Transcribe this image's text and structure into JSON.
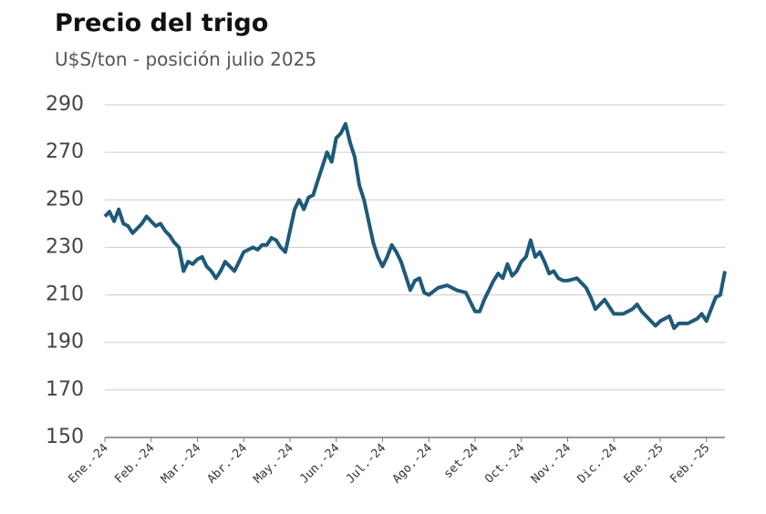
{
  "chart_data": {
    "type": "line",
    "title": "Precio del trigo",
    "subtitle": "U$S/ton - posición julio 2025",
    "xlim": [
      0,
      13.4
    ],
    "xticks": [
      {
        "value": 0,
        "label": "Ene.-24"
      },
      {
        "value": 1,
        "label": "Feb.-24"
      },
      {
        "value": 2,
        "label": "Mar.-24"
      },
      {
        "value": 3,
        "label": "Abr.-24"
      },
      {
        "value": 4,
        "label": "May.-24"
      },
      {
        "value": 5,
        "label": "Jun.-24"
      },
      {
        "value": 6,
        "label": "Jul.-24"
      },
      {
        "value": 7,
        "label": "Ago.-24"
      },
      {
        "value": 8,
        "label": "set-24"
      },
      {
        "value": 9,
        "label": "Oct.-24"
      },
      {
        "value": 10,
        "label": "Nov.-24"
      },
      {
        "value": 11,
        "label": "Dic.-24"
      },
      {
        "value": 12,
        "label": "Ene.-25"
      },
      {
        "value": 13,
        "label": "Feb.-25"
      }
    ],
    "ylim": [
      150,
      290
    ],
    "yticks": [
      150,
      170,
      190,
      210,
      230,
      250,
      270,
      290
    ],
    "grid": true,
    "series": [
      {
        "color": "#1e5a78",
        "x": [
          0.0,
          0.1,
          0.2,
          0.3,
          0.4,
          0.5,
          0.6,
          0.7,
          0.8,
          0.9,
          1.0,
          1.1,
          1.2,
          1.3,
          1.4,
          1.5,
          1.6,
          1.7,
          1.8,
          1.9,
          2.0,
          2.1,
          2.2,
          2.3,
          2.4,
          2.5,
          2.6,
          2.7,
          2.8,
          2.9,
          3.0,
          3.1,
          3.2,
          3.3,
          3.4,
          3.5,
          3.6,
          3.7,
          3.8,
          3.9,
          4.0,
          4.1,
          4.2,
          4.3,
          4.4,
          4.5,
          4.6,
          4.7,
          4.8,
          4.9,
          5.0,
          5.1,
          5.2,
          5.3,
          5.4,
          5.5,
          5.6,
          5.7,
          5.8,
          5.9,
          6.0,
          6.1,
          6.2,
          6.3,
          6.4,
          6.5,
          6.6,
          6.7,
          6.8,
          6.9,
          7.0,
          7.2,
          7.4,
          7.6,
          7.8,
          8.0,
          8.1,
          8.2,
          8.3,
          8.4,
          8.5,
          8.6,
          8.7,
          8.8,
          8.9,
          9.0,
          9.1,
          9.2,
          9.3,
          9.4,
          9.5,
          9.6,
          9.7,
          9.8,
          9.9,
          10.0,
          10.2,
          10.4,
          10.5,
          10.6,
          10.7,
          10.8,
          10.9,
          11.0,
          11.2,
          11.4,
          11.5,
          11.6,
          11.8,
          11.9,
          12.0,
          12.2,
          12.3,
          12.4,
          12.6,
          12.8,
          12.9,
          13.0,
          13.1,
          13.2,
          13.3,
          13.4
        ],
        "values": [
          243,
          245,
          241,
          246,
          240,
          239,
          236,
          238,
          240,
          243,
          241,
          239,
          240,
          237,
          235,
          232,
          230,
          220,
          224,
          223,
          225,
          226,
          222,
          220,
          217,
          220,
          224,
          222,
          220,
          224,
          228,
          229,
          230,
          229,
          231,
          231,
          234,
          233,
          230,
          228,
          237,
          246,
          250,
          246,
          251,
          252,
          258,
          264,
          270,
          266,
          276,
          278,
          282,
          274,
          268,
          256,
          250,
          241,
          232,
          226,
          222,
          226,
          231,
          228,
          224,
          218,
          212,
          216,
          217,
          211,
          210,
          213,
          214,
          212,
          211,
          203,
          203,
          208,
          212,
          216,
          219,
          217,
          223,
          218,
          220,
          224,
          226,
          233,
          226,
          228,
          224,
          219,
          220,
          217,
          216,
          216,
          217,
          213,
          209,
          204,
          206,
          208,
          205,
          202,
          202,
          204,
          206,
          203,
          199,
          197,
          199,
          201,
          196,
          198,
          198,
          200,
          202,
          199,
          204,
          209,
          210,
          220
        ]
      }
    ]
  }
}
